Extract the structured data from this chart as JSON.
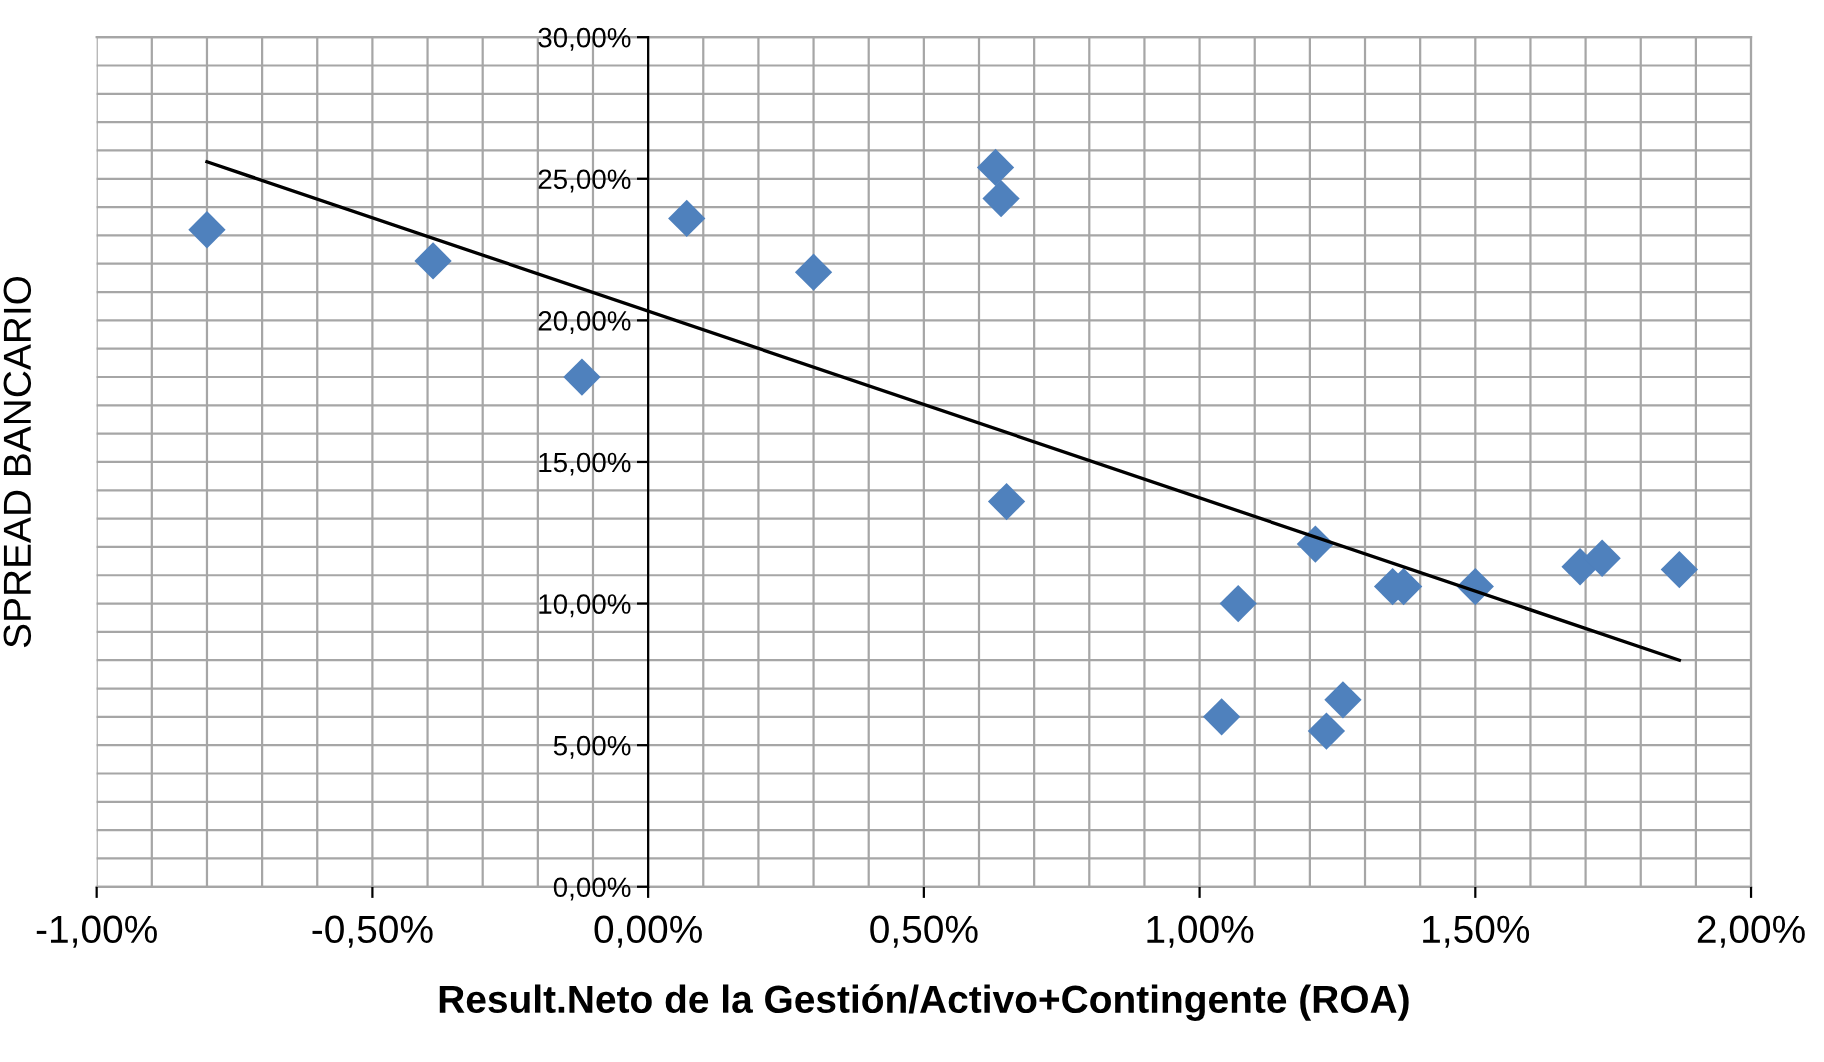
{
  "chart_data": {
    "type": "scatter",
    "xlabel": "Result.Neto de la Gestión/Activo+Contingente (ROA)",
    "ylabel": "SPREAD BANCARIO",
    "xlim": [
      -1,
      2
    ],
    "ylim": [
      0,
      30
    ],
    "xticks": [
      {
        "value": -1,
        "label": "-1,00%"
      },
      {
        "value": -0.5,
        "label": "-0,50%"
      },
      {
        "value": 0,
        "label": "0,00%"
      },
      {
        "value": 0.5,
        "label": "0,50%"
      },
      {
        "value": 1,
        "label": "1,00%"
      },
      {
        "value": 1.5,
        "label": "1,50%"
      },
      {
        "value": 2,
        "label": "2,00%"
      }
    ],
    "yticks": [
      {
        "value": 0,
        "label": "0,00%"
      },
      {
        "value": 5,
        "label": "5,00%"
      },
      {
        "value": 10,
        "label": "10,00%"
      },
      {
        "value": 15,
        "label": "15,00%"
      },
      {
        "value": 20,
        "label": "20,00%"
      },
      {
        "value": 25,
        "label": "25,00%"
      },
      {
        "value": 30,
        "label": "30,00%"
      }
    ],
    "grid": true,
    "series": [
      {
        "marker": "diamond",
        "color": "#4f81bd",
        "x": [
          -0.8,
          -0.39,
          -0.12,
          0.07,
          0.3,
          0.63,
          0.64,
          0.65,
          1.04,
          1.07,
          1.21,
          1.23,
          1.26,
          1.35,
          1.37,
          1.5,
          1.69,
          1.73,
          1.87
        ],
        "values": [
          23.2,
          22.1,
          18.0,
          23.6,
          21.7,
          25.4,
          24.3,
          13.6,
          6.0,
          10.0,
          12.1,
          5.5,
          6.6,
          10.6,
          10.6,
          10.6,
          11.3,
          11.6,
          11.2
        ]
      },
      {
        "type": "line",
        "color": "#000000",
        "x": [
          -0.8,
          1.87
        ],
        "values": [
          25.6,
          8.0
        ]
      }
    ]
  }
}
